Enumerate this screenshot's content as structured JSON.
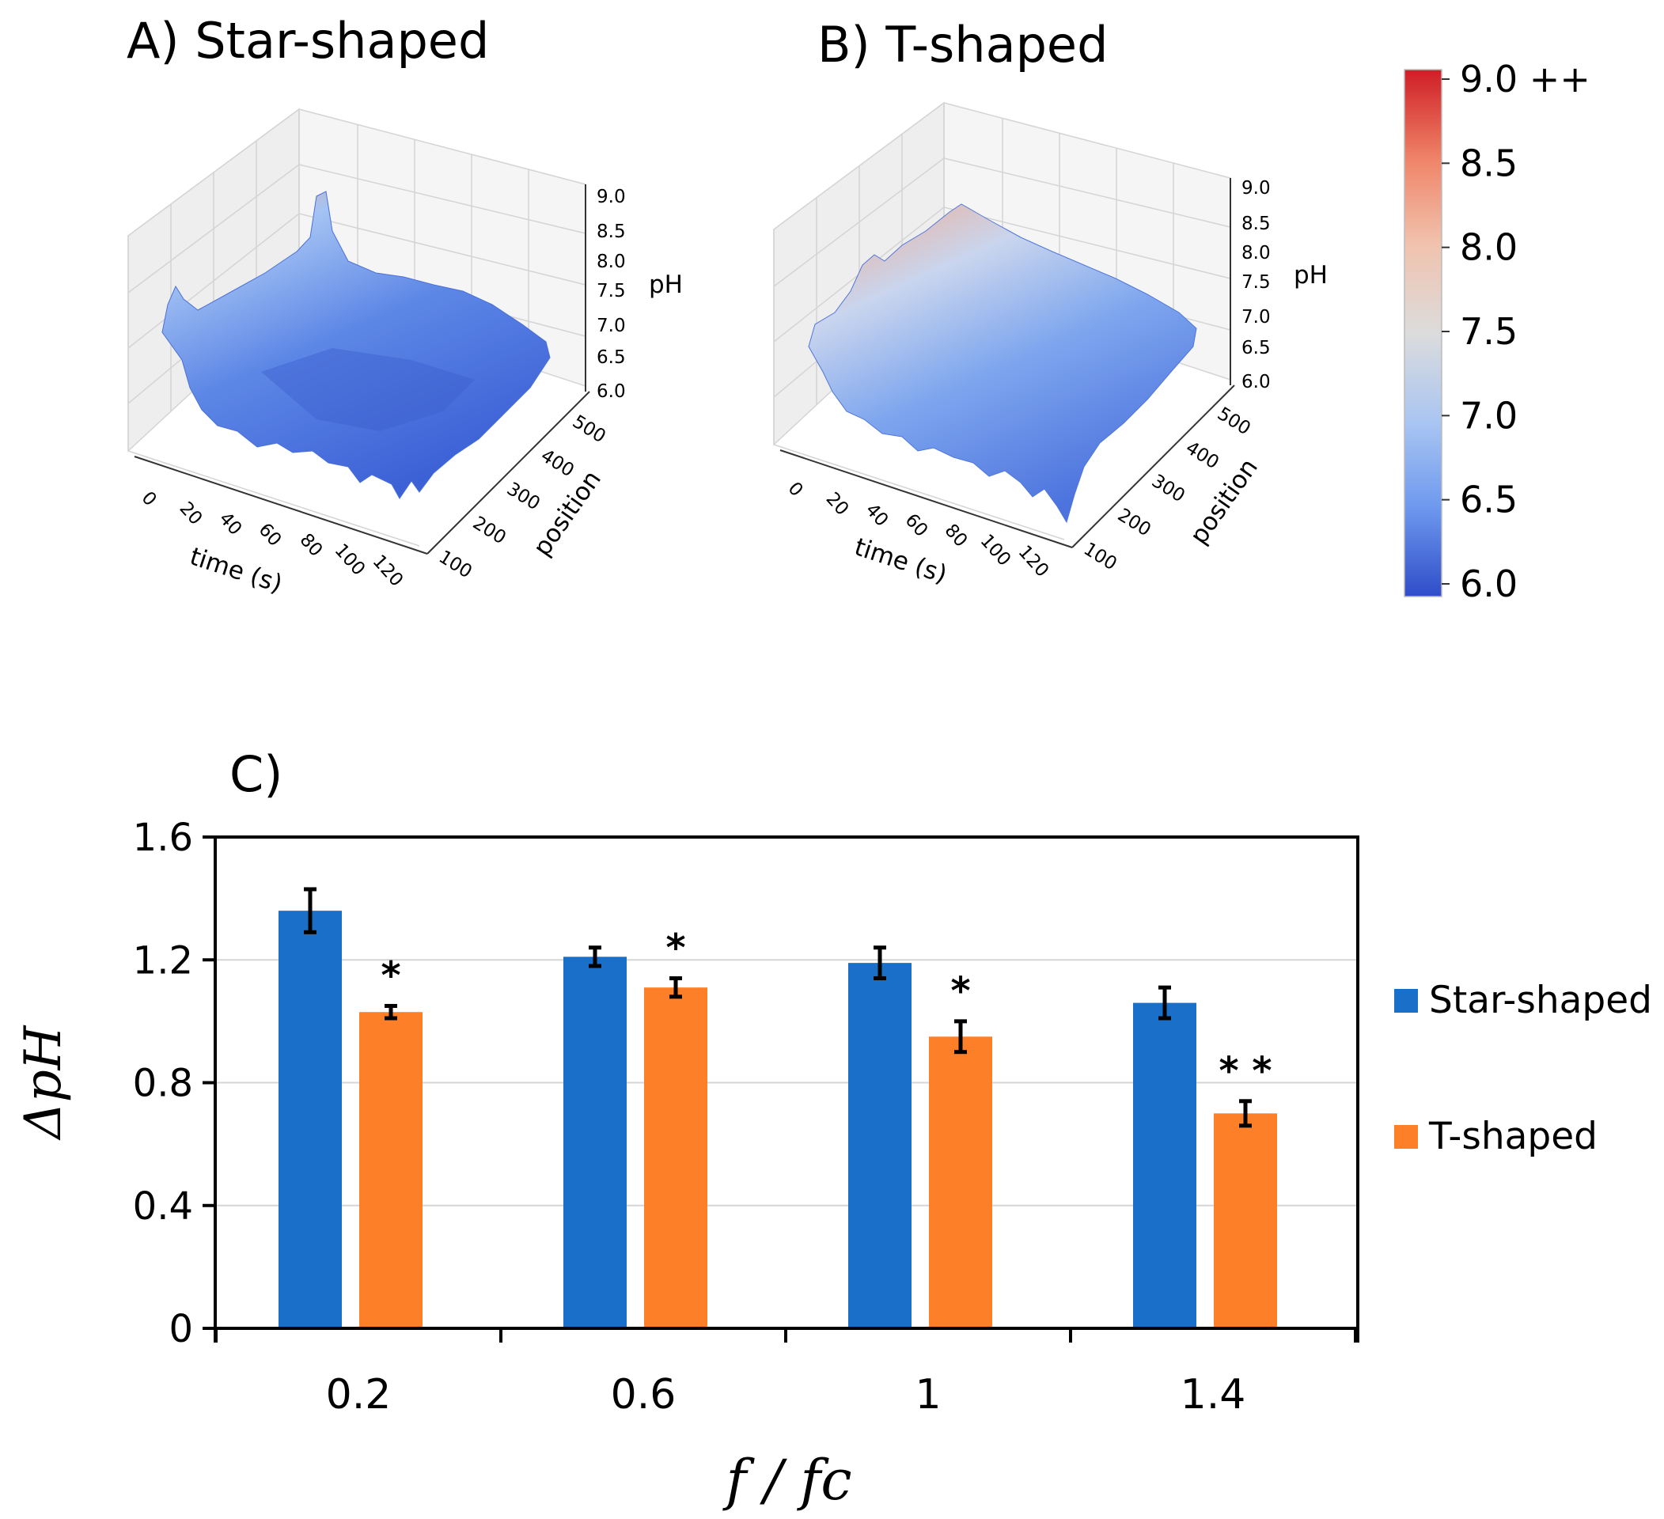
{
  "panels_3d": [
    {
      "id": "A",
      "title": "A)  Star-shaped",
      "zlabel": "pH",
      "zticks": [
        "9.0",
        "8.5",
        "8.0",
        "7.5",
        "7.0",
        "6.5",
        "6.0"
      ],
      "xlabel": "time (s)",
      "xticks": [
        "0",
        "20",
        "40",
        "60",
        "80",
        "100",
        "120"
      ],
      "ylabel": "position",
      "yticks": [
        "100",
        "200",
        "300",
        "400",
        "500"
      ]
    },
    {
      "id": "B",
      "title": "B) T-shaped",
      "zlabel": "pH",
      "zticks": [
        "9.0",
        "8.5",
        "8.0",
        "7.5",
        "7.0",
        "6.5",
        "6.0"
      ],
      "xlabel": "time (s)",
      "xticks": [
        "0",
        "20",
        "40",
        "60",
        "80",
        "100",
        "120"
      ],
      "ylabel": "position",
      "yticks": [
        "100",
        "200",
        "300",
        "400",
        "500"
      ]
    }
  ],
  "colorbar": {
    "ticks": [
      "9.0 ++",
      "8.5",
      "8.0",
      "7.5",
      "7.0",
      "6.5",
      "6.0"
    ],
    "colors": [
      "#cf1e26",
      "#ef8468",
      "#f1c2ad",
      "#dcdcdc",
      "#a9c5f2",
      "#6e99ee",
      "#2f4dc9"
    ]
  },
  "chart_data": {
    "panel_label": "C)",
    "type": "bar",
    "categories": [
      "0.2",
      "0.6",
      "1",
      "1.4"
    ],
    "series": [
      {
        "name": "Star-shaped",
        "color": "#1a70c8",
        "values": [
          1.36,
          1.21,
          1.19,
          1.06
        ],
        "errors": [
          0.07,
          0.03,
          0.05,
          0.05
        ]
      },
      {
        "name": "T-shaped",
        "color": "#fd7f28",
        "values": [
          1.03,
          1.11,
          0.95,
          0.7
        ],
        "errors": [
          0.02,
          0.03,
          0.05,
          0.04
        ]
      }
    ],
    "significance": [
      "*",
      "*",
      "*",
      "**"
    ],
    "xlabel": "f / fc",
    "ylabel": "ΔpH",
    "ylim": [
      0,
      1.6
    ],
    "yticks": [
      "0",
      "0.4",
      "0.8",
      "1.2",
      "1.6"
    ],
    "grid": true,
    "legend": "right"
  }
}
